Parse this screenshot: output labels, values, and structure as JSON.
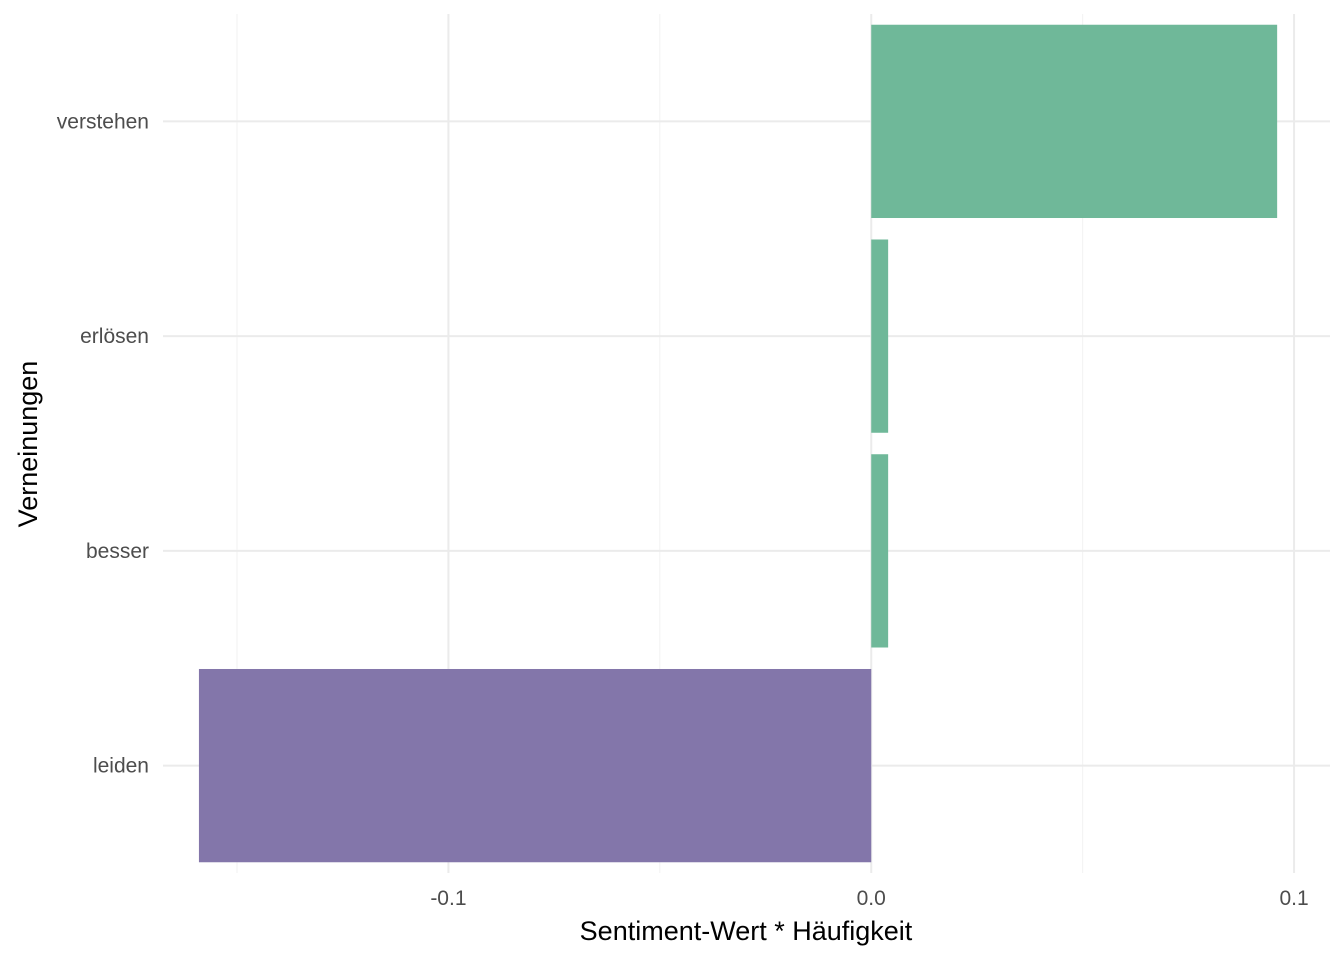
{
  "chart_data": {
    "type": "bar",
    "orientation": "horizontal",
    "categories": [
      "verstehen",
      "erlösen",
      "besser",
      "leiden"
    ],
    "values": [
      0.096,
      0.004,
      0.004,
      -0.159
    ],
    "xlabel": "Sentiment-Wert * Häufigkeit",
    "ylabel": "Verneinungen",
    "xlim": [
      -0.1675,
      0.1085
    ],
    "xticks": [
      {
        "value": -0.1,
        "label": "-0.1"
      },
      {
        "value": 0.0,
        "label": "0.0"
      },
      {
        "value": 0.1,
        "label": "0.1"
      }
    ],
    "minor_xticks": [
      -0.15,
      -0.05,
      0.05
    ],
    "grid": true,
    "legend": "none",
    "colors": {
      "positive": "#6fb899",
      "negative": "#8376aa"
    }
  }
}
